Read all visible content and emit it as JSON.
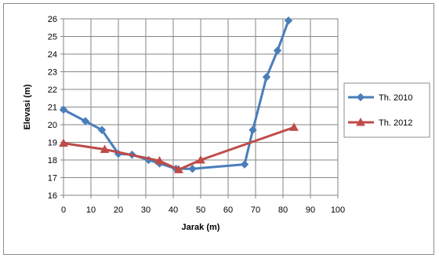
{
  "chart_data": {
    "type": "line",
    "xlabel": "Jarak (m)",
    "ylabel": "Elevasi (m)",
    "xlim": [
      0,
      100
    ],
    "ylim": [
      16,
      26
    ],
    "x_ticks": [
      "0",
      "10",
      "20",
      "30",
      "40",
      "50",
      "60",
      "70",
      "80",
      "90",
      "100"
    ],
    "y_ticks": [
      "16",
      "17",
      "18",
      "19",
      "20",
      "21",
      "22",
      "23",
      "24",
      "25",
      "26"
    ],
    "grid": true,
    "legend_position": "right",
    "series": [
      {
        "name": "Th. 2010",
        "color": "#4a7ebb",
        "marker": "diamond",
        "points": [
          [
            0,
            20.85
          ],
          [
            8,
            20.2
          ],
          [
            14,
            19.7
          ],
          [
            20,
            18.35
          ],
          [
            25,
            18.3
          ],
          [
            31,
            18.0
          ],
          [
            35,
            17.8
          ],
          [
            41,
            17.5
          ],
          [
            47,
            17.5
          ],
          [
            66,
            17.75
          ],
          [
            69,
            19.7
          ],
          [
            74,
            22.7
          ],
          [
            78,
            24.2
          ],
          [
            82,
            25.9
          ]
        ]
      },
      {
        "name": "Th. 2012",
        "color": "#be4b48",
        "marker": "triangle",
        "points": [
          [
            0,
            18.95
          ],
          [
            15,
            18.6
          ],
          [
            35,
            17.95
          ],
          [
            42,
            17.45
          ],
          [
            50,
            18.0
          ],
          [
            84,
            19.85
          ]
        ]
      }
    ]
  }
}
